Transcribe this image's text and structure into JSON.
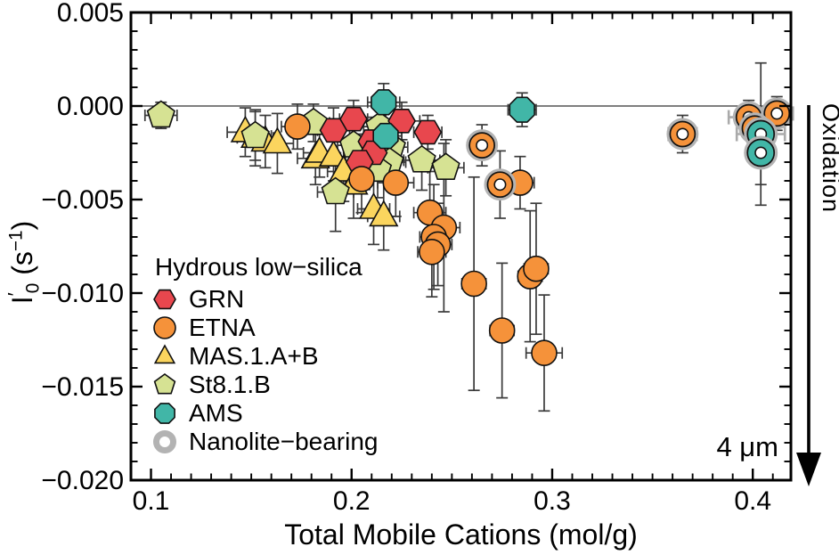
{
  "figure": {
    "x_axis_label": "Total Mobile Cations (mol/g)",
    "y_axis_label": {
      "symbol": "I",
      "prime": "′",
      "subscript": "0",
      "unit_open": "(s",
      "exponent": "−1",
      "unit_close": ")"
    },
    "annotations": {
      "grain_size": "4 μm",
      "process_arrow": "Oxidation"
    }
  },
  "chart_data": {
    "type": "scatter",
    "title": "",
    "xlabel": "Total Mobile Cations (mol/g)",
    "ylabel": "I′0 (s−1)",
    "xlim": [
      0.09,
      0.419
    ],
    "ylim": [
      -0.02,
      0.005
    ],
    "x_ticks": [
      0.1,
      0.2,
      0.3,
      0.4
    ],
    "x_tick_labels": [
      "0.1",
      "0.2",
      "0.3",
      "0.4"
    ],
    "y_ticks": [
      0.005,
      0.0,
      -0.005,
      -0.01,
      -0.015,
      -0.02
    ],
    "y_tick_labels": [
      "0.005",
      "0.000",
      "−0.005",
      "−0.010",
      "−0.015",
      "−0.020"
    ],
    "x_minor_step": 0.01,
    "y_minor_step": 0.001,
    "zero_line_y": 0,
    "grid": false,
    "legend": {
      "title": "Hydrous low−silica",
      "position": "lower left",
      "items": [
        "GRN",
        "ETNA",
        "MAS.1.A+B",
        "St8.1.B",
        "AMS",
        "Nanolite−bearing"
      ]
    },
    "colors": {
      "GRN": "#e8474e",
      "ETNA": "#f5923a",
      "MAS.1.A+B": "#fbd55e",
      "St8.1.B": "#d6e293",
      "AMS": "#41b6a7",
      "nanolite_ring": "#b3b3b3",
      "error_bar": "#3a3a3a",
      "error_bar_gray": "#aaaaaa"
    },
    "draw_order": [
      "MAS.1.A+B",
      "St8.1.B",
      "GRN",
      "ETNA",
      "AMS"
    ],
    "series": [
      {
        "name": "GRN",
        "marker": "hexagon",
        "size": 15,
        "color_key": "GRN",
        "points": [
          {
            "x": 0.191,
            "y": -0.0013,
            "ex": 0.008,
            "ey": 0.0012
          },
          {
            "x": 0.201,
            "y": -0.0007,
            "ex": 0.007,
            "ey": 0.001
          },
          {
            "x": 0.21,
            "y": -0.0019,
            "ex": 0.008,
            "ey": 0.0013
          },
          {
            "x": 0.211,
            "y": -0.0025,
            "ex": 0.008,
            "ey": 0.0012
          },
          {
            "x": 0.204,
            "y": -0.003,
            "ex": 0.007,
            "ey": 0.0015
          },
          {
            "x": 0.225,
            "y": -0.0008,
            "ex": 0.009,
            "ey": 0.001
          },
          {
            "x": 0.238,
            "y": -0.0014,
            "ex": 0.007,
            "ey": 0.0009
          }
        ]
      },
      {
        "name": "ETNA",
        "marker": "circle",
        "size": 14,
        "color_key": "ETNA",
        "points": [
          {
            "x": 0.173,
            "y": -0.0011,
            "ex": 0.008,
            "ey": 0.0012
          },
          {
            "x": 0.205,
            "y": -0.0039,
            "ex": 0.008,
            "ey": 0.0018
          },
          {
            "x": 0.222,
            "y": -0.0041,
            "ex": 0.009,
            "ey": 0.0018
          },
          {
            "x": 0.284,
            "y": -0.0041,
            "ex": 0.007,
            "ey": 0.0014
          },
          {
            "x": 0.239,
            "y": -0.0057,
            "ex": 0.008,
            "ey": 0.0022
          },
          {
            "x": 0.246,
            "y": -0.0065,
            "ex": 0.008,
            "ey": 0.0045
          },
          {
            "x": 0.241,
            "y": -0.007,
            "ex": 0.007,
            "ey": 0.0028
          },
          {
            "x": 0.243,
            "y": -0.0074,
            "ex": 0.007,
            "ey": 0.0022
          },
          {
            "x": 0.24,
            "y": -0.0078,
            "ex": 0.007,
            "ey": 0.0024
          },
          {
            "x": 0.261,
            "y": -0.0095,
            "ex": 0.006,
            "ey": 0.0057
          },
          {
            "x": 0.275,
            "y": -0.012,
            "ex": 0.006,
            "ey": 0.0036
          },
          {
            "x": 0.289,
            "y": -0.0091,
            "ex": 0.006,
            "ey": 0.0035
          },
          {
            "x": 0.292,
            "y": -0.0087,
            "ex": 0.006,
            "ey": 0.0035
          },
          {
            "x": 0.296,
            "y": -0.0132,
            "ex": 0.009,
            "ey": 0.0031
          },
          {
            "x": 0.265,
            "y": -0.0021,
            "ex": 0.007,
            "ey": 0.0011,
            "nano": true
          },
          {
            "x": 0.274,
            "y": -0.0042,
            "ex": 0.007,
            "ey": 0.0018,
            "nano": true
          },
          {
            "x": 0.365,
            "y": -0.0015,
            "ex": 0.005,
            "ey": 0.001,
            "nano": true,
            "gx": 0.007
          },
          {
            "x": 0.398,
            "y": -0.0006,
            "ex": 0.005,
            "ey": 0.0009,
            "nano": true,
            "gx": 0.01
          },
          {
            "x": 0.412,
            "y": -0.0004,
            "ex": 0.005,
            "ey": 0.0009,
            "nano": true,
            "gx": 0.008
          },
          {
            "x": 0.401,
            "y": -0.0012,
            "ex": 0.005,
            "ey": 0.0012,
            "nano": true
          }
        ]
      },
      {
        "name": "MAS.1.A+B",
        "marker": "triangle",
        "size": 17,
        "color_key": "MAS.1.A+B",
        "points": [
          {
            "x": 0.147,
            "y": -0.0014,
            "ex": 0.009,
            "ey": 0.0013
          },
          {
            "x": 0.152,
            "y": -0.0017,
            "ex": 0.009,
            "ey": 0.0015
          },
          {
            "x": 0.157,
            "y": -0.0019,
            "ex": 0.008,
            "ey": 0.0014
          },
          {
            "x": 0.163,
            "y": -0.002,
            "ex": 0.008,
            "ey": 0.0016
          },
          {
            "x": 0.182,
            "y": -0.0028,
            "ex": 0.009,
            "ey": 0.0014
          },
          {
            "x": 0.184,
            "y": -0.0025,
            "ex": 0.008,
            "ey": 0.0013
          },
          {
            "x": 0.191,
            "y": -0.0027,
            "ex": 0.008,
            "ey": 0.0013
          },
          {
            "x": 0.196,
            "y": -0.0035,
            "ex": 0.008,
            "ey": 0.0016
          },
          {
            "x": 0.201,
            "y": -0.0042,
            "ex": 0.008,
            "ey": 0.0018
          },
          {
            "x": 0.211,
            "y": -0.0055,
            "ex": 0.008,
            "ey": 0.0019
          },
          {
            "x": 0.216,
            "y": -0.0059,
            "ex": 0.008,
            "ey": 0.0018
          }
        ]
      },
      {
        "name": "St8.1.B",
        "marker": "pentagon",
        "size": 16,
        "color_key": "St8.1.B",
        "points": [
          {
            "x": 0.105,
            "y": -0.0005,
            "ex": 0.008,
            "ey": 0.0007
          },
          {
            "x": 0.152,
            "y": -0.0016,
            "ex": 0.008,
            "ey": 0.0013
          },
          {
            "x": 0.181,
            "y": -0.0009,
            "ex": 0.008,
            "ey": 0.001
          },
          {
            "x": 0.214,
            "y": -0.0011,
            "ex": 0.008,
            "ey": 0.0011
          },
          {
            "x": 0.201,
            "y": -0.0021,
            "ex": 0.008,
            "ey": 0.0013
          },
          {
            "x": 0.22,
            "y": -0.0022,
            "ex": 0.008,
            "ey": 0.0013
          },
          {
            "x": 0.219,
            "y": -0.003,
            "ex": 0.008,
            "ey": 0.0014
          },
          {
            "x": 0.213,
            "y": -0.0034,
            "ex": 0.008,
            "ey": 0.0015
          },
          {
            "x": 0.235,
            "y": -0.0029,
            "ex": 0.009,
            "ey": 0.0016
          },
          {
            "x": 0.247,
            "y": -0.0033,
            "ex": 0.009,
            "ey": 0.0015
          },
          {
            "x": 0.192,
            "y": -0.0046,
            "ex": 0.009,
            "ey": 0.0021
          }
        ]
      },
      {
        "name": "AMS",
        "marker": "octagon",
        "size": 15,
        "color_key": "AMS",
        "points": [
          {
            "x": 0.216,
            "y": 0.0002,
            "ex": 0.008,
            "ey": 0.001
          },
          {
            "x": 0.217,
            "y": -0.0016,
            "ex": 0.008,
            "ey": 0.0013
          },
          {
            "x": 0.285,
            "y": -0.0002,
            "ex": 0.007,
            "ey": 0.0009
          },
          {
            "x": 0.404,
            "y": -0.0015,
            "ex": 0.006,
            "ey": 0.0038,
            "nano": true,
            "gx": 0.012
          },
          {
            "x": 0.404,
            "y": -0.0025,
            "ex": 0.006,
            "ey": 0.0017,
            "nano": true
          }
        ]
      },
      {
        "name": "Nanolite−bearing",
        "marker": "ring",
        "size": 12,
        "color_key": "nanolite_ring",
        "legend_only": true,
        "points": []
      }
    ]
  }
}
